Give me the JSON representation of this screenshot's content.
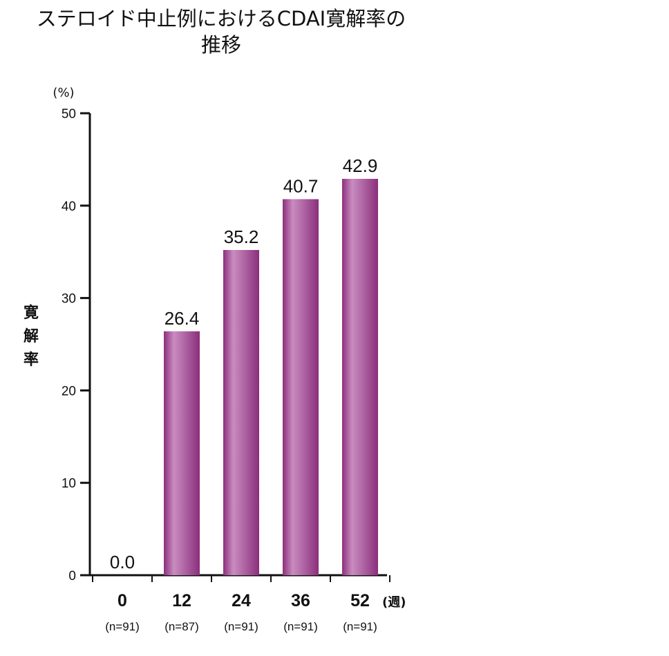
{
  "chart_data": {
    "type": "bar",
    "title_line1": "ステロイド中止例におけるCDAI寛解率の",
    "title_line2": "推移",
    "ylabel": "寛解率",
    "y_unit": "(%)",
    "x_unit": "(週)",
    "ylim": [
      0,
      50
    ],
    "yticks": [
      0,
      10,
      20,
      30,
      40,
      50
    ],
    "categories": [
      "0",
      "12",
      "24",
      "36",
      "52"
    ],
    "n_labels": [
      "(n=91)",
      "(n=87)",
      "(n=91)",
      "(n=91)",
      "(n=91)"
    ],
    "values": [
      0.0,
      26.4,
      35.2,
      40.7,
      42.9
    ],
    "value_labels": [
      "0.0",
      "26.4",
      "35.2",
      "40.7",
      "42.9"
    ],
    "bar_color": "#8b2f7c",
    "bar_highlight": "#c98cc0",
    "grid": false,
    "legend": "none"
  }
}
